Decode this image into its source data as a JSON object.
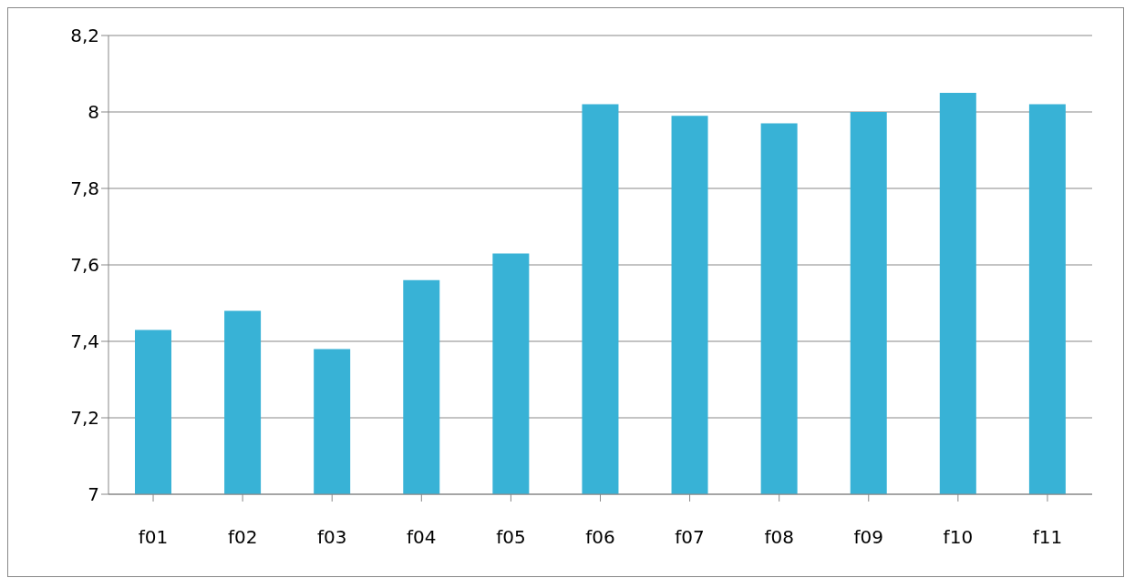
{
  "chart_data": {
    "type": "bar",
    "categories": [
      "f01",
      "f02",
      "f03",
      "f04",
      "f05",
      "f06",
      "f07",
      "f08",
      "f09",
      "f10",
      "f11"
    ],
    "values": [
      7.43,
      7.48,
      7.38,
      7.56,
      7.63,
      8.02,
      7.99,
      7.97,
      8.0,
      8.05,
      8.02
    ],
    "color": "#38b2d6",
    "ylim": [
      7,
      8.2
    ],
    "yticks": [
      7,
      {
        "value": 7.2,
        "label": "7,2"
      },
      {
        "value": 7.4,
        "label": "7,4"
      },
      {
        "value": 7.6,
        "label": "7,6"
      },
      {
        "value": 7.8,
        "label": "7,8"
      },
      8,
      {
        "value": 8.2,
        "label": "8,2"
      }
    ],
    "grid": "y",
    "legend": false
  }
}
